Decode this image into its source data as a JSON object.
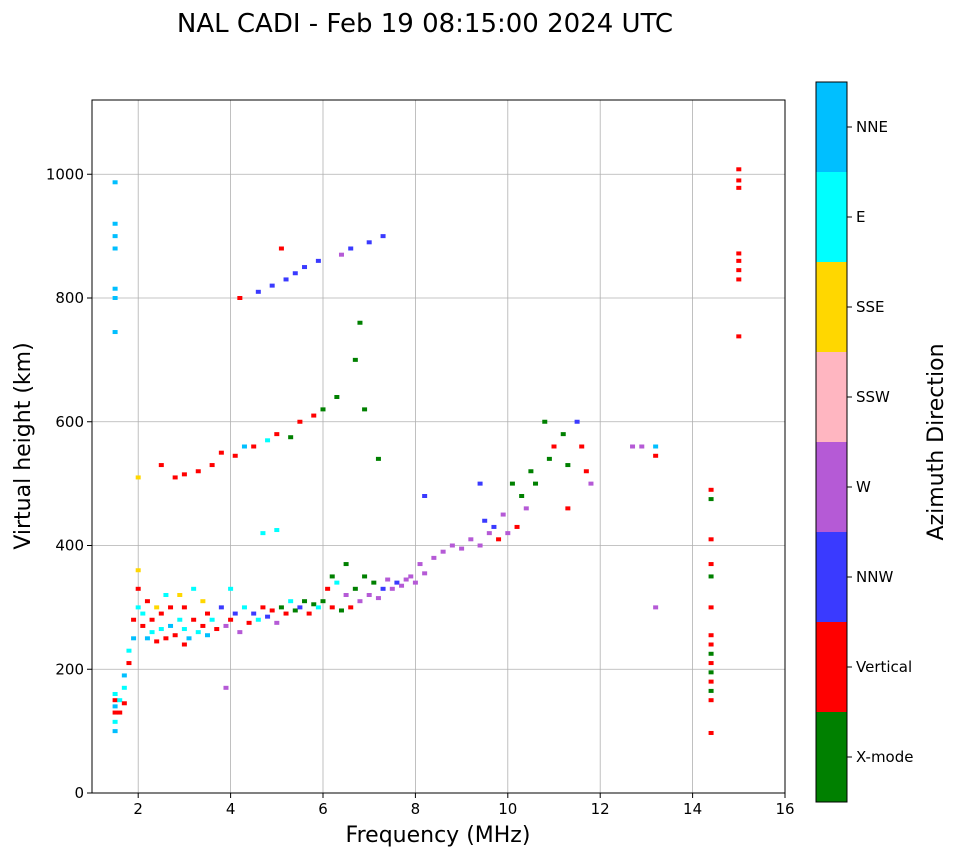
{
  "chart_data": {
    "type": "scatter",
    "title": "NAL CADI - Feb 19 08:15:00 2024 UTC",
    "xlabel": "Frequency (MHz)",
    "ylabel": "Virtual height (km)",
    "xlim": [
      1,
      16
    ],
    "ylim": [
      0,
      1120
    ],
    "xticks": [
      2,
      4,
      6,
      8,
      10,
      12,
      14,
      16
    ],
    "yticks": [
      0,
      200,
      400,
      600,
      800,
      1000
    ],
    "grid": true,
    "colorbar": {
      "label": "Azimuth Direction",
      "categories": [
        "X-mode",
        "Vertical",
        "NNW",
        "W",
        "SSW",
        "SSE",
        "E",
        "NNE"
      ],
      "colors": [
        "#008000",
        "#ff0000",
        "#3a3aff",
        "#b55ad6",
        "#ffb6c1",
        "#ffd700",
        "#00ffff",
        "#00bfff"
      ]
    },
    "point_fields": [
      "frequency_mhz",
      "height_km",
      "direction_index"
    ],
    "points": [
      [
        1.5,
        100,
        7
      ],
      [
        1.5,
        115,
        6
      ],
      [
        1.5,
        130,
        1
      ],
      [
        1.5,
        140,
        7
      ],
      [
        1.5,
        150,
        1
      ],
      [
        1.5,
        160,
        6
      ],
      [
        1.5,
        745,
        7
      ],
      [
        1.5,
        800,
        7
      ],
      [
        1.5,
        815,
        7
      ],
      [
        1.5,
        880,
        7
      ],
      [
        1.5,
        900,
        7
      ],
      [
        1.5,
        920,
        7
      ],
      [
        1.5,
        987,
        7
      ],
      [
        1.6,
        130,
        1
      ],
      [
        1.6,
        150,
        6
      ],
      [
        1.7,
        145,
        1
      ],
      [
        1.7,
        170,
        6
      ],
      [
        1.7,
        190,
        7
      ],
      [
        1.8,
        210,
        1
      ],
      [
        1.8,
        230,
        6
      ],
      [
        1.9,
        250,
        7
      ],
      [
        1.9,
        280,
        1
      ],
      [
        2.0,
        300,
        6
      ],
      [
        2.0,
        330,
        1
      ],
      [
        2.0,
        360,
        5
      ],
      [
        2.0,
        510,
        5
      ],
      [
        2.1,
        270,
        1
      ],
      [
        2.1,
        290,
        6
      ],
      [
        2.2,
        250,
        7
      ],
      [
        2.2,
        310,
        1
      ],
      [
        2.3,
        260,
        6
      ],
      [
        2.3,
        280,
        1
      ],
      [
        2.4,
        245,
        1
      ],
      [
        2.4,
        300,
        5
      ],
      [
        2.5,
        265,
        6
      ],
      [
        2.5,
        290,
        1
      ],
      [
        2.5,
        530,
        1
      ],
      [
        2.6,
        250,
        1
      ],
      [
        2.6,
        320,
        6
      ],
      [
        2.7,
        270,
        7
      ],
      [
        2.7,
        300,
        1
      ],
      [
        2.8,
        255,
        1
      ],
      [
        2.8,
        510,
        1
      ],
      [
        2.9,
        280,
        6
      ],
      [
        2.9,
        320,
        5
      ],
      [
        3.0,
        240,
        1
      ],
      [
        3.0,
        265,
        6
      ],
      [
        3.0,
        300,
        1
      ],
      [
        3.0,
        515,
        1
      ],
      [
        3.1,
        250,
        7
      ],
      [
        3.2,
        280,
        1
      ],
      [
        3.2,
        330,
        6
      ],
      [
        3.3,
        260,
        6
      ],
      [
        3.3,
        520,
        1
      ],
      [
        3.4,
        270,
        1
      ],
      [
        3.4,
        310,
        5
      ],
      [
        3.5,
        255,
        7
      ],
      [
        3.5,
        290,
        1
      ],
      [
        3.6,
        280,
        6
      ],
      [
        3.6,
        530,
        1
      ],
      [
        3.7,
        265,
        1
      ],
      [
        3.8,
        300,
        2
      ],
      [
        3.8,
        550,
        1
      ],
      [
        3.9,
        270,
        3
      ],
      [
        3.9,
        170,
        3
      ],
      [
        4.0,
        280,
        1
      ],
      [
        4.0,
        330,
        6
      ],
      [
        4.1,
        290,
        2
      ],
      [
        4.1,
        545,
        1
      ],
      [
        4.2,
        260,
        3
      ],
      [
        4.2,
        800,
        1
      ],
      [
        4.3,
        300,
        6
      ],
      [
        4.3,
        560,
        7
      ],
      [
        4.4,
        275,
        1
      ],
      [
        4.5,
        290,
        2
      ],
      [
        4.5,
        560,
        1
      ],
      [
        4.6,
        280,
        6
      ],
      [
        4.6,
        810,
        2
      ],
      [
        4.7,
        300,
        1
      ],
      [
        4.7,
        420,
        6
      ],
      [
        4.8,
        285,
        2
      ],
      [
        4.8,
        570,
        6
      ],
      [
        4.9,
        295,
        1
      ],
      [
        4.9,
        820,
        2
      ],
      [
        5.0,
        275,
        3
      ],
      [
        5.0,
        580,
        1
      ],
      [
        5.0,
        425,
        6
      ],
      [
        5.1,
        300,
        0
      ],
      [
        5.1,
        880,
        1
      ],
      [
        5.2,
        290,
        1
      ],
      [
        5.2,
        830,
        2
      ],
      [
        5.3,
        310,
        6
      ],
      [
        5.3,
        575,
        0
      ],
      [
        5.4,
        295,
        0
      ],
      [
        5.4,
        840,
        2
      ],
      [
        5.5,
        300,
        2
      ],
      [
        5.5,
        600,
        1
      ],
      [
        5.6,
        310,
        0
      ],
      [
        5.6,
        850,
        2
      ],
      [
        5.7,
        290,
        1
      ],
      [
        5.8,
        305,
        0
      ],
      [
        5.8,
        610,
        1
      ],
      [
        5.9,
        300,
        6
      ],
      [
        5.9,
        860,
        2
      ],
      [
        6.0,
        310,
        0
      ],
      [
        6.0,
        620,
        0
      ],
      [
        6.1,
        330,
        1
      ],
      [
        6.2,
        300,
        1
      ],
      [
        6.2,
        350,
        0
      ],
      [
        6.3,
        340,
        6
      ],
      [
        6.3,
        640,
        0
      ],
      [
        6.4,
        295,
        0
      ],
      [
        6.4,
        870,
        3
      ],
      [
        6.5,
        320,
        3
      ],
      [
        6.5,
        370,
        0
      ],
      [
        6.6,
        300,
        1
      ],
      [
        6.6,
        880,
        2
      ],
      [
        6.7,
        330,
        0
      ],
      [
        6.7,
        700,
        0
      ],
      [
        6.8,
        310,
        3
      ],
      [
        6.8,
        760,
        0
      ],
      [
        6.9,
        350,
        0
      ],
      [
        6.9,
        620,
        0
      ],
      [
        7.0,
        320,
        3
      ],
      [
        7.0,
        890,
        2
      ],
      [
        7.1,
        340,
        0
      ],
      [
        7.2,
        315,
        3
      ],
      [
        7.2,
        540,
        0
      ],
      [
        7.3,
        330,
        2
      ],
      [
        7.3,
        900,
        2
      ],
      [
        7.4,
        345,
        3
      ],
      [
        7.5,
        330,
        3
      ],
      [
        7.6,
        340,
        2
      ],
      [
        7.7,
        335,
        3
      ],
      [
        7.8,
        345,
        3
      ],
      [
        7.9,
        350,
        3
      ],
      [
        8.0,
        340,
        3
      ],
      [
        8.1,
        370,
        3
      ],
      [
        8.2,
        355,
        3
      ],
      [
        8.2,
        480,
        2
      ],
      [
        8.4,
        380,
        3
      ],
      [
        8.6,
        390,
        3
      ],
      [
        8.8,
        400,
        3
      ],
      [
        9.0,
        395,
        3
      ],
      [
        9.2,
        410,
        3
      ],
      [
        9.4,
        400,
        3
      ],
      [
        9.4,
        500,
        2
      ],
      [
        9.5,
        440,
        2
      ],
      [
        9.6,
        420,
        3
      ],
      [
        9.7,
        430,
        2
      ],
      [
        9.8,
        410,
        1
      ],
      [
        9.9,
        450,
        3
      ],
      [
        10.0,
        420,
        3
      ],
      [
        10.1,
        500,
        0
      ],
      [
        10.2,
        430,
        1
      ],
      [
        10.3,
        480,
        0
      ],
      [
        10.4,
        460,
        3
      ],
      [
        10.5,
        520,
        0
      ],
      [
        10.6,
        500,
        0
      ],
      [
        10.8,
        600,
        0
      ],
      [
        10.9,
        540,
        0
      ],
      [
        11.0,
        560,
        1
      ],
      [
        11.2,
        580,
        0
      ],
      [
        11.3,
        530,
        0
      ],
      [
        11.3,
        460,
        1
      ],
      [
        11.5,
        600,
        2
      ],
      [
        11.6,
        560,
        1
      ],
      [
        11.7,
        520,
        1
      ],
      [
        11.8,
        500,
        3
      ],
      [
        12.7,
        560,
        3
      ],
      [
        12.9,
        560,
        3
      ],
      [
        13.2,
        560,
        7
      ],
      [
        13.2,
        545,
        1
      ],
      [
        13.2,
        300,
        3
      ],
      [
        14.4,
        97,
        1
      ],
      [
        14.4,
        150,
        1
      ],
      [
        14.4,
        165,
        0
      ],
      [
        14.4,
        180,
        1
      ],
      [
        14.4,
        195,
        0
      ],
      [
        14.4,
        210,
        1
      ],
      [
        14.4,
        225,
        0
      ],
      [
        14.4,
        240,
        1
      ],
      [
        14.4,
        255,
        1
      ],
      [
        14.4,
        300,
        1
      ],
      [
        14.4,
        350,
        0
      ],
      [
        14.4,
        370,
        1
      ],
      [
        14.4,
        410,
        1
      ],
      [
        14.4,
        475,
        0
      ],
      [
        14.4,
        490,
        1
      ],
      [
        15.0,
        738,
        1
      ],
      [
        15.0,
        830,
        1
      ],
      [
        15.0,
        845,
        1
      ],
      [
        15.0,
        860,
        1
      ],
      [
        15.0,
        872,
        1
      ],
      [
        15.0,
        978,
        1
      ],
      [
        15.0,
        990,
        1
      ],
      [
        15.0,
        1008,
        1
      ]
    ]
  }
}
